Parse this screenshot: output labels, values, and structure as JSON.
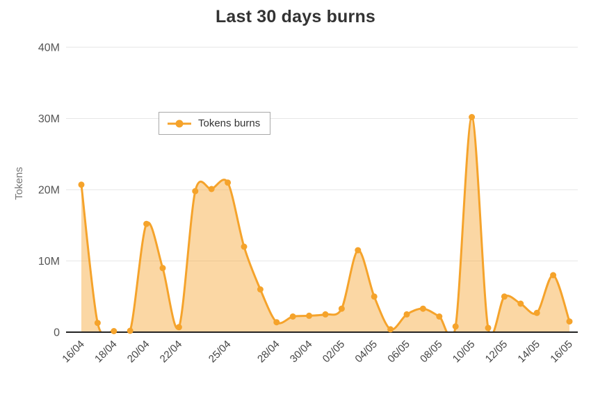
{
  "title": "Last 30 days burns",
  "chart_data": {
    "type": "area",
    "title": "Last 30 days burns",
    "xlabel": "",
    "ylabel": "Tokens",
    "x": [
      "16/04",
      "17/04",
      "18/04",
      "19/04",
      "20/04",
      "21/04",
      "22/04",
      "23/04",
      "24/04",
      "25/04",
      "26/04",
      "27/04",
      "28/04",
      "29/04",
      "30/04",
      "01/05",
      "02/05",
      "03/05",
      "04/05",
      "05/05",
      "06/05",
      "07/05",
      "08/05",
      "09/05",
      "10/05",
      "11/05",
      "12/05",
      "13/05",
      "14/05",
      "15/05",
      "16/05"
    ],
    "series": [
      {
        "name": "Tokens burns",
        "values": [
          20700000,
          1300000,
          150000,
          200000,
          15200000,
          9000000,
          700000,
          19800000,
          20100000,
          21000000,
          12000000,
          6000000,
          1400000,
          2200000,
          2300000,
          2500000,
          3300000,
          11500000,
          5000000,
          400000,
          2500000,
          3300000,
          2200000,
          800000,
          30200000,
          600000,
          5000000,
          4000000,
          2700000,
          8000000,
          1500000
        ]
      }
    ],
    "ylim": [
      0,
      40000000
    ],
    "yticks": [
      {
        "value": 0,
        "label": "0"
      },
      {
        "value": 10000000,
        "label": "10M"
      },
      {
        "value": 20000000,
        "label": "20M"
      },
      {
        "value": 30000000,
        "label": "30M"
      },
      {
        "value": 40000000,
        "label": "40M"
      }
    ],
    "visible_x_tick_indices": [
      0,
      2,
      4,
      6,
      9,
      12,
      14,
      16,
      18,
      20,
      22,
      24,
      26,
      28,
      30
    ],
    "grid": "horizontal",
    "legend_position": "inside-top-left",
    "colors": {
      "line": "#F5A32B",
      "point": "#F5A32B",
      "fill": "rgba(247,166,53,0.45)",
      "axis": "#222222",
      "grid": "#E6E6E6",
      "tick_text": "#555555",
      "x_tick_text": "#444444",
      "title_text": "#333333"
    }
  }
}
